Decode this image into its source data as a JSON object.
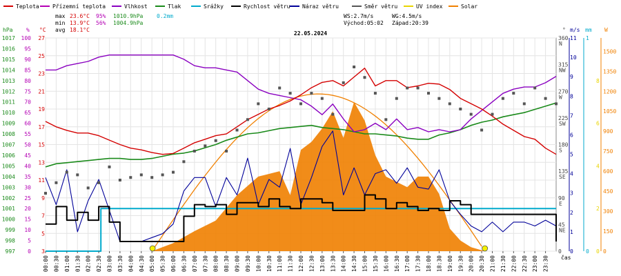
{
  "chart_data": {
    "type": "line",
    "date": "22.05.2024",
    "legend": [
      {
        "label": "Teplota",
        "color": "#d40000"
      },
      {
        "label": "Přízemní teplota",
        "color": "#b400b4"
      },
      {
        "label": "Vlhkost",
        "color": "#8a00c0"
      },
      {
        "label": "Tlak",
        "color": "#1a8a1a"
      },
      {
        "label": "Srážky",
        "color": "#00aacc"
      },
      {
        "label": "Rychlost větru",
        "color": "#000000"
      },
      {
        "label": "Náraz větru",
        "color": "#000099"
      },
      {
        "label": "Směr větru",
        "color": "#555555"
      },
      {
        "label": "UV index",
        "color": "#e8d400"
      },
      {
        "label": "Solar",
        "color": "#f08000"
      }
    ],
    "stats": {
      "max_label": "max",
      "max_temp": "23.6°C",
      "max_hum": "95%",
      "max_press": "1010.9hPa",
      "rain": "0.2mm",
      "min_label": "min",
      "min_temp": "13.9°C",
      "min_hum": "56%",
      "min_press": "1004.9hPa",
      "avg_label": "avg",
      "avg_temp": "18.1°C",
      "ws": "WS:2.7m/s",
      "wg": "WG:4.5m/s",
      "sunrise": "Východ:05:02",
      "sunset": "Západ:20:39"
    },
    "axes": {
      "hpa": {
        "unit": "hPa",
        "color": "#1a8a1a",
        "range": [
          997,
          1017
        ],
        "ticks": [
          "1017",
          "1016",
          "1015",
          "1014",
          "1013",
          "1012",
          "1011",
          "1010",
          "1009",
          "1008",
          "1007",
          "1006",
          "1005",
          "1004",
          "1003",
          "1002",
          "1001",
          "1000",
          "999",
          "998",
          "997"
        ]
      },
      "pct": {
        "unit": "%",
        "color": "#b400b4",
        "range": [
          0,
          100
        ],
        "ticks": [
          "100",
          "95",
          "90",
          "85",
          "80",
          "75",
          "70",
          "65",
          "60",
          "55",
          "50",
          "45",
          "40",
          "35",
          "30",
          "25",
          "20",
          "15",
          "10",
          "5",
          "0"
        ]
      },
      "temp": {
        "unit": "°C",
        "color": "#d40000",
        "range": [
          3,
          27
        ],
        "ticks": [
          "27",
          "25",
          "23",
          "21",
          "19",
          "17",
          "15",
          "13",
          "11",
          "9",
          "7",
          "5",
          "3"
        ]
      },
      "dir": {
        "unit": "°",
        "color": "#555555",
        "ticks": [
          {
            "v": "360",
            "c": "N"
          },
          {
            "v": "315",
            "c": "NW"
          },
          {
            "v": "270",
            "c": "W"
          },
          {
            "v": "225",
            "c": "SW"
          },
          {
            "v": "180",
            "c": "S"
          },
          {
            "v": "135",
            "c": "SE"
          },
          {
            "v": "90",
            "c": "E"
          },
          {
            "v": "45",
            "c": "NE"
          },
          {
            "v": "0",
            "c": ""
          }
        ]
      },
      "ms": {
        "unit": "m/s",
        "color": "#000099",
        "range": [
          0,
          11
        ],
        "ticks": [
          "11",
          "10",
          "9",
          "8",
          "7",
          "6",
          "5",
          "4",
          "3",
          "2",
          "1",
          "0"
        ]
      },
      "mm": {
        "unit": "mm",
        "color": "#00aacc",
        "range": [
          0,
          1
        ],
        "ticks": [
          "1",
          "0"
        ]
      },
      "wm2": {
        "unit": "W",
        "color": "#f08000",
        "range": [
          0,
          1600
        ],
        "ticks": [
          "1500",
          "1350",
          "1200",
          "1050",
          "900",
          "750",
          "600",
          "450",
          "300",
          "150",
          "0"
        ]
      },
      "uv": {
        "color": "#e8d400",
        "ticks": [
          "8",
          "6",
          "4",
          "2",
          "0"
        ]
      },
      "time_label": "čas",
      "time_ticks": [
        "00:00",
        "00:30",
        "01:00",
        "01:30",
        "02:00",
        "02:30",
        "03:00",
        "03:30",
        "04:00",
        "04:30",
        "05:00",
        "05:30",
        "06:00",
        "06:30",
        "07:00",
        "07:30",
        "08:00",
        "08:30",
        "09:00",
        "09:30",
        "10:00",
        "10:30",
        "11:00",
        "11:30",
        "12:00",
        "12:30",
        "13:00",
        "13:30",
        "14:00",
        "14:30",
        "15:00",
        "15:30",
        "16:00",
        "16:30",
        "17:00",
        "17:30",
        "18:00",
        "18:30",
        "19:00",
        "19:30",
        "20:00",
        "20:30",
        "21:00",
        "21:30",
        "22:00",
        "22:30",
        "23:00",
        "23:30"
      ]
    },
    "series": [
      {
        "name": "Teplota",
        "unit": "°C",
        "x": [
          0,
          0.5,
          1,
          1.5,
          2,
          2.5,
          3,
          3.5,
          4,
          4.5,
          5,
          5.5,
          6,
          6.5,
          7,
          7.5,
          8,
          8.5,
          9,
          9.5,
          10,
          10.5,
          11,
          11.5,
          12,
          12.5,
          13,
          13.5,
          14,
          14.5,
          15,
          15.5,
          16,
          16.5,
          17,
          17.5,
          18,
          18.5,
          19,
          19.5,
          20,
          20.5,
          21,
          21.5,
          22,
          22.5,
          23,
          23.5,
          24
        ],
        "y": [
          17.6,
          17.0,
          16.6,
          16.3,
          16.3,
          16.0,
          15.5,
          15.0,
          14.6,
          14.4,
          14.1,
          13.9,
          14.0,
          14.6,
          15.2,
          15.6,
          16.0,
          16.2,
          17.0,
          17.8,
          18.4,
          19.0,
          19.4,
          19.9,
          20.6,
          21.4,
          22.0,
          22.2,
          21.6,
          22.6,
          23.6,
          21.6,
          22.2,
          22.2,
          21.4,
          21.6,
          21.9,
          21.8,
          21.2,
          20.2,
          19.6,
          19.0,
          18.2,
          17.3,
          16.6,
          15.9,
          15.6,
          14.6,
          13.9
        ]
      },
      {
        "name": "Vlhkost",
        "unit": "%",
        "x": [
          0,
          0.5,
          1,
          1.5,
          2,
          2.5,
          3,
          3.5,
          4,
          4.5,
          5,
          5.5,
          6,
          6.5,
          7,
          7.5,
          8,
          8.5,
          9,
          9.5,
          10,
          10.5,
          11,
          11.5,
          12,
          12.5,
          13,
          13.5,
          14,
          14.5,
          15,
          15.5,
          16,
          16.5,
          17,
          17.5,
          18,
          18.5,
          19,
          19.5,
          20,
          20.5,
          21,
          21.5,
          22,
          22.5,
          23,
          23.5,
          24
        ],
        "y": [
          85,
          85,
          87,
          88,
          89,
          91,
          92,
          92,
          92,
          92,
          92,
          92,
          92,
          90,
          87,
          86,
          86,
          85,
          84,
          80,
          76,
          74,
          73,
          72,
          71,
          68,
          64,
          69,
          62,
          56,
          57,
          60,
          57,
          62,
          57,
          58,
          56,
          57,
          56,
          57,
          62,
          66,
          70,
          74,
          76,
          77,
          77,
          79,
          82
        ]
      },
      {
        "name": "Tlak",
        "unit": "hPa",
        "x": [
          0,
          0.5,
          1,
          1.5,
          2,
          2.5,
          3,
          3.5,
          4,
          4.5,
          5,
          5.5,
          6,
          6.5,
          7,
          7.5,
          8,
          8.5,
          9,
          9.5,
          10,
          10.5,
          11,
          11.5,
          12,
          12.5,
          13,
          13.5,
          14,
          14.5,
          15,
          15.5,
          16,
          16.5,
          17,
          17.5,
          18,
          18.5,
          19,
          19.5,
          20,
          20.5,
          21,
          21.5,
          22,
          22.5,
          23,
          23.5,
          24
        ],
        "y": [
          1004.9,
          1005.2,
          1005.3,
          1005.4,
          1005.5,
          1005.6,
          1005.7,
          1005.7,
          1005.6,
          1005.6,
          1005.7,
          1005.9,
          1006.1,
          1006.2,
          1006.4,
          1006.7,
          1007.0,
          1007.4,
          1007.7,
          1008.0,
          1008.1,
          1008.3,
          1008.5,
          1008.6,
          1008.7,
          1008.8,
          1008.6,
          1008.5,
          1008.4,
          1008.2,
          1008.0,
          1008.0,
          1007.9,
          1007.8,
          1007.6,
          1007.5,
          1007.5,
          1007.9,
          1008.1,
          1008.4,
          1008.8,
          1009.1,
          1009.3,
          1009.6,
          1009.8,
          1010.0,
          1010.3,
          1010.6,
          1010.9
        ]
      },
      {
        "name": "Solar",
        "unit": "W/m²",
        "x": [
          5.0,
          6,
          7,
          8,
          9,
          10,
          11,
          11.5,
          12,
          12.5,
          13,
          13.5,
          14,
          14.5,
          15,
          15.5,
          16,
          16.5,
          17,
          17.5,
          18,
          18.5,
          19,
          19.5,
          20.0,
          20.65
        ],
        "y": [
          0,
          60,
          150,
          230,
          420,
          560,
          600,
          420,
          760,
          820,
          920,
          1050,
          850,
          1120,
          980,
          720,
          560,
          520,
          480,
          560,
          560,
          430,
          170,
          80,
          30,
          0
        ]
      },
      {
        "name": "Rychlost větru",
        "unit": "m/s",
        "x": [
          0,
          0.5,
          1,
          1.5,
          2,
          2.5,
          3,
          3.5,
          4,
          4.5,
          5,
          5.5,
          6,
          6.5,
          7,
          7.5,
          8,
          8.5,
          9,
          9.5,
          10,
          10.5,
          11,
          11.5,
          12,
          12.5,
          13,
          13.5,
          14,
          14.5,
          15,
          15.5,
          16,
          16.5,
          17,
          17.5,
          18,
          18.5,
          19,
          19.5,
          20,
          20.5,
          21,
          21.5,
          22,
          22.5,
          23,
          23.5,
          24
        ],
        "y": [
          1.4,
          2.3,
          1.6,
          2.0,
          1.6,
          2.3,
          1.5,
          0.5,
          0.5,
          0.5,
          0.5,
          0.5,
          0.5,
          1.8,
          2.4,
          2.3,
          2.4,
          1.9,
          2.5,
          2.5,
          2.3,
          2.7,
          2.3,
          2.2,
          2.7,
          2.7,
          2.5,
          2.1,
          2.1,
          2.1,
          2.9,
          2.7,
          2.2,
          2.5,
          2.3,
          2.1,
          2.2,
          2.1,
          2.6,
          2.4,
          1.9,
          1.9,
          1.9,
          1.9,
          1.9,
          1.9,
          1.9,
          1.9,
          0.5
        ]
      },
      {
        "name": "Náraz větru",
        "unit": "m/s",
        "x": [
          0,
          0.5,
          1,
          1.5,
          2,
          2.5,
          3,
          3.5,
          4,
          4.5,
          5,
          5.5,
          6,
          6.5,
          7,
          7.5,
          8,
          8.5,
          9,
          9.5,
          10,
          10.5,
          11,
          11.5,
          12,
          12.5,
          13,
          13.5,
          14,
          14.5,
          15,
          15.5,
          16,
          16.5,
          17,
          17.5,
          18,
          18.5,
          19,
          19.5,
          20,
          20.5,
          21,
          21.5,
          22,
          22.5,
          23,
          23.5,
          24
        ],
        "y": [
          3.8,
          2.4,
          4.2,
          1.0,
          2.6,
          3.7,
          2.1,
          0.5,
          0.5,
          0.5,
          0.7,
          0.9,
          1.4,
          3.1,
          3.8,
          3.8,
          2.3,
          3.8,
          2.9,
          4.8,
          2.4,
          3.7,
          3.3,
          5.3,
          2.4,
          3.8,
          5.4,
          6.2,
          2.9,
          4.3,
          2.9,
          4.0,
          4.2,
          3.5,
          4.3,
          3.3,
          3.2,
          4.2,
          2.6,
          1.9,
          1.3,
          1.0,
          1.5,
          1.0,
          1.5,
          1.5,
          1.3,
          1.6,
          1.3
        ]
      },
      {
        "name": "Směr větru",
        "unit": "°",
        "x": [
          0,
          0.5,
          1,
          1.5,
          2,
          2.5,
          3,
          3.5,
          4,
          4.5,
          5,
          5.5,
          6,
          6.5,
          7,
          7.5,
          8,
          8.5,
          9,
          9.5,
          10,
          10.5,
          11,
          11.5,
          12,
          12.5,
          13,
          13.5,
          14,
          14.5,
          15,
          15.5,
          16,
          16.5,
          17,
          17.5,
          18,
          18.5,
          19,
          19.5,
          20,
          20.5,
          21,
          21.5,
          22,
          22.5,
          23,
          23.5,
          24
        ],
        "y": [
          110,
          130,
          150,
          145,
          120,
          130,
          160,
          135,
          140,
          145,
          140,
          145,
          150,
          170,
          190,
          200,
          210,
          190,
          230,
          250,
          280,
          270,
          310,
          300,
          280,
          300,
          290,
          260,
          320,
          350,
          330,
          300,
          250,
          290,
          310,
          310,
          300,
          290,
          280,
          270,
          260,
          230,
          260,
          290,
          300,
          280,
          310,
          290,
          280
        ]
      },
      {
        "name": "Srážky",
        "unit": "mm",
        "x": [
          0,
          2.6,
          2.6,
          24
        ],
        "y": [
          0,
          0,
          0.2,
          0.2
        ]
      }
    ]
  }
}
